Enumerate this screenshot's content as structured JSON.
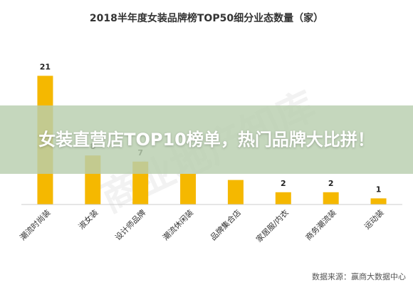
{
  "headline": "女装直营店TOP10榜单，热门品牌大比拼！",
  "watermark": "商业地产知库",
  "source": "数据来源：赢商大数据中心",
  "colors": {
    "bar": "#F5B800",
    "axis": "#CCCCCC"
  },
  "chart_data": {
    "type": "bar",
    "title": "2018半年度女装品牌榜TOP50细分业态数量（家）",
    "xlabel": "",
    "ylabel": "",
    "categories": [
      "潮流时尚装",
      "淑女装",
      "设计师品牌",
      "潮流休闲装",
      "品牌集合店",
      "家居服/内衣",
      "商务潮流装",
      "运动装"
    ],
    "values": [
      21,
      8,
      7,
      5,
      4,
      2,
      2,
      1
    ],
    "data_labels": [
      "21",
      "8",
      "7",
      "",
      "",
      "2",
      "2",
      "1"
    ],
    "ylim": [
      0,
      25
    ],
    "grid": false,
    "legend": "none"
  }
}
